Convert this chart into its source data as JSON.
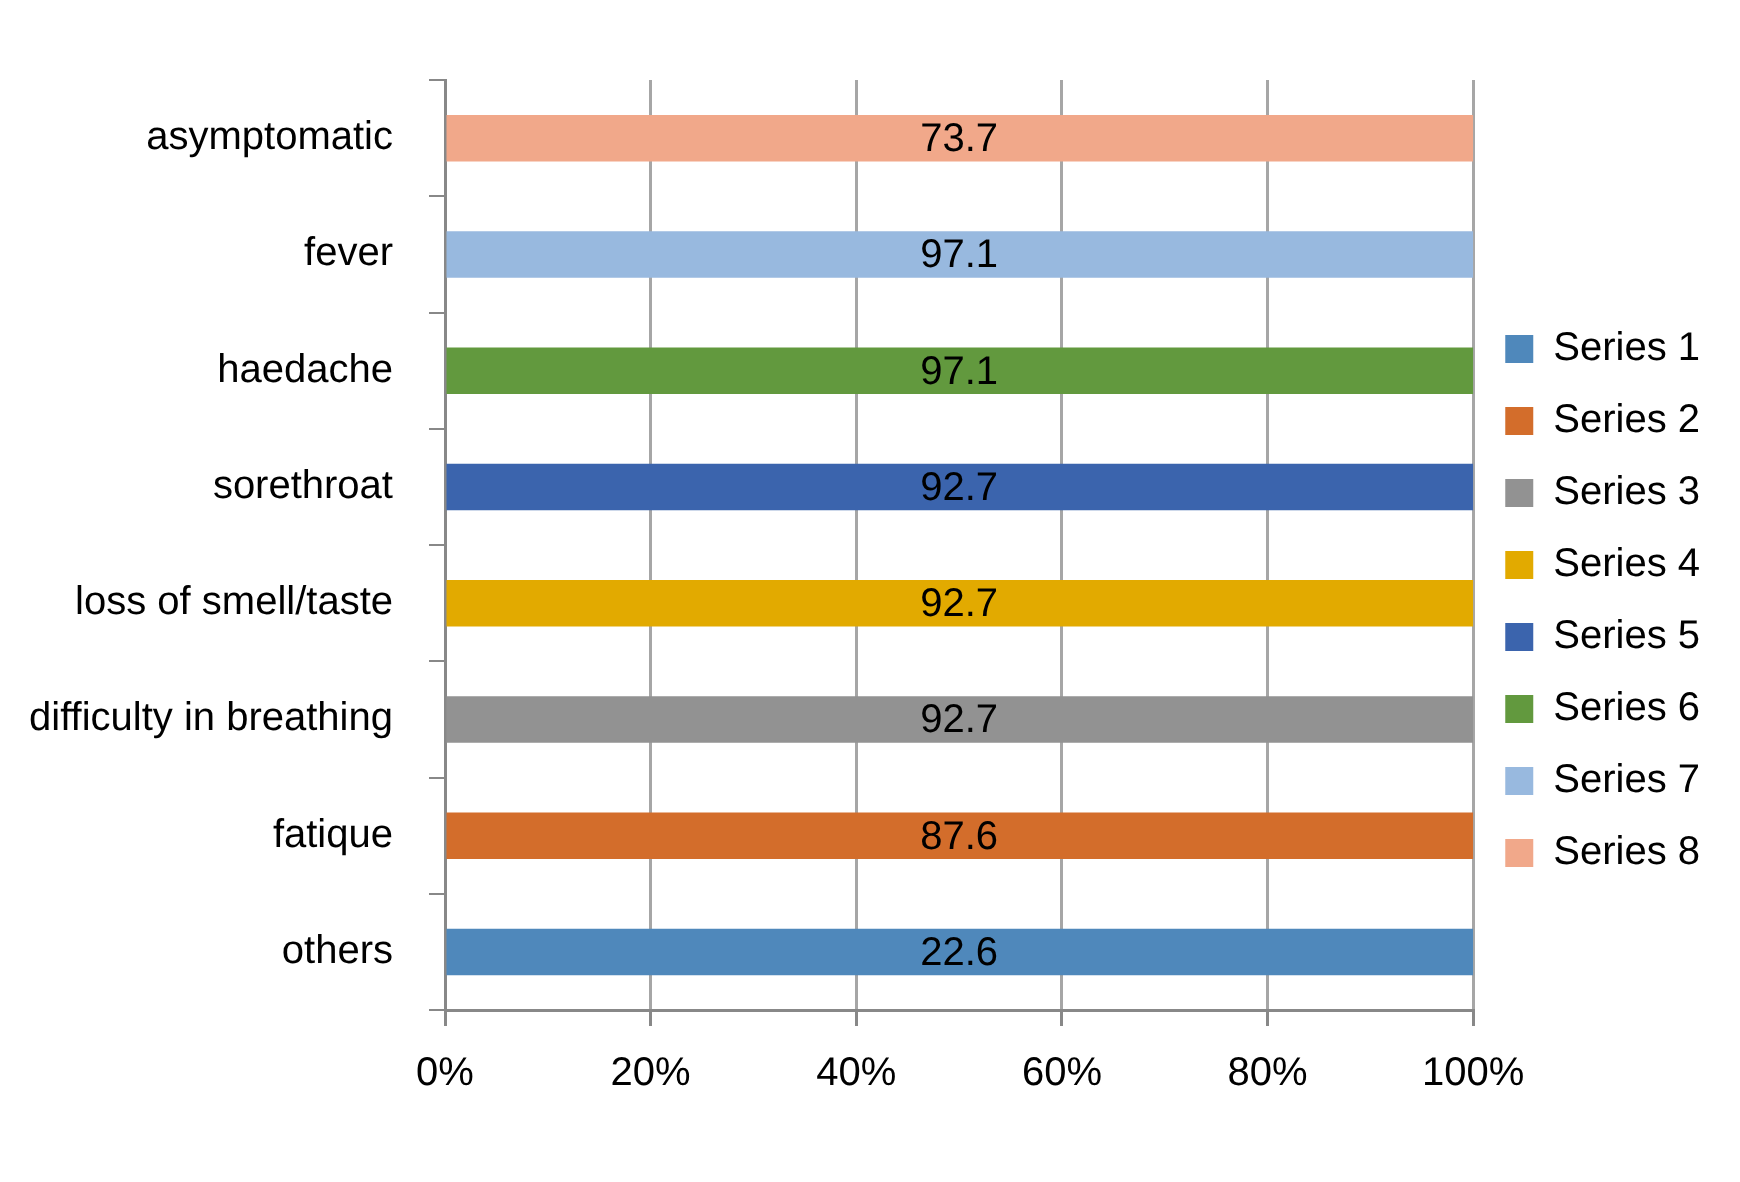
{
  "chart_data": {
    "type": "bar",
    "orientation": "horizontal",
    "stacked": true,
    "categories": [
      "asymptomatic",
      "fever",
      "haedache",
      "sorethroat",
      "loss of smell/taste",
      "difficulty in breathing",
      "fatique",
      "others"
    ],
    "series": [
      {
        "name": "Series 1",
        "color": "#4f88bb",
        "values": [
          null,
          null,
          null,
          null,
          null,
          null,
          null,
          100
        ]
      },
      {
        "name": "Series 2",
        "color": "#d36d2b",
        "values": [
          null,
          null,
          null,
          null,
          null,
          null,
          100,
          null
        ]
      },
      {
        "name": "Series 3",
        "color": "#929292",
        "values": [
          null,
          null,
          null,
          null,
          null,
          100,
          null,
          null
        ]
      },
      {
        "name": "Series 4",
        "color": "#e2aa00",
        "values": [
          null,
          null,
          null,
          null,
          100,
          null,
          null,
          null
        ]
      },
      {
        "name": "Series 5",
        "color": "#3b64ad",
        "values": [
          null,
          null,
          null,
          100,
          null,
          null,
          null,
          null
        ]
      },
      {
        "name": "Series 6",
        "color": "#62993e",
        "values": [
          null,
          null,
          100,
          null,
          null,
          null,
          null,
          null
        ]
      },
      {
        "name": "Series 7",
        "color": "#98b9df",
        "values": [
          null,
          100,
          null,
          null,
          null,
          null,
          null,
          null
        ]
      },
      {
        "name": "Series 8",
        "color": "#f1a88a",
        "values": [
          100,
          null,
          null,
          null,
          null,
          null,
          null,
          null
        ]
      }
    ],
    "annotations": [
      "73.7",
      "97.1",
      "97.1",
      "92.7",
      "92.7",
      "92.7",
      "87.6",
      "22.6"
    ],
    "xlim": [
      0,
      100
    ],
    "xticks": [
      {
        "value": 0,
        "label": "0%"
      },
      {
        "value": 20,
        "label": "20%"
      },
      {
        "value": 40,
        "label": "40%"
      },
      {
        "value": 60,
        "label": "60%"
      },
      {
        "value": 80,
        "label": "80%"
      },
      {
        "value": 100,
        "label": "100%"
      }
    ],
    "grid": "x",
    "legend": "right"
  }
}
